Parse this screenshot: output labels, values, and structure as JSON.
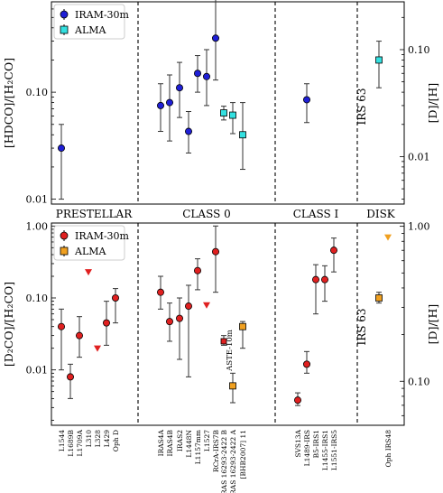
{
  "figure": {
    "section_labels": [
      "PRESTELLAR",
      "CLASS 0",
      "CLASS I",
      "DISK"
    ],
    "xticklabels": [
      "L1544",
      "L1689B",
      "L1709A",
      "L310",
      "L328",
      "L429",
      "Oph D",
      "IRAS4A",
      "IRAS4B",
      "IRAS2",
      "L1448N",
      "L1157mm",
      "L1527",
      "RCrA-IRS7B",
      "IRAS 16293-2422 B",
      "IRAS 16293-2422 A",
      "[BHB2007] 11",
      "SVS13A",
      "L1489-IRS",
      "B5-IRS1",
      "L1455-IRS1",
      "L1551-IRS5",
      "Oph IRS48"
    ],
    "colors": {
      "iram_top": "#1f1fd6",
      "alma_top": "#33e0e0",
      "iram_bottom": "#e02020",
      "alma_bottom": "#f0a020",
      "error": "#333333"
    }
  },
  "chart_data": [
    {
      "type": "scatter",
      "ylabel": "[HDCO]/[H₂CO]",
      "ylabel_right": "[D]/[H]",
      "yscale": "log",
      "ylim": [
        0.009,
        0.7
      ],
      "ylim_right": [
        0.0036,
        0.28
      ],
      "yticks": [
        0.01,
        0.1
      ],
      "yticklabels": [
        "0.01",
        "0.10"
      ],
      "yticks_right": [
        0.01,
        0.1
      ],
      "yticklabels_right": [
        "0.01",
        "0.10"
      ],
      "legend": {
        "position": "top-left",
        "entries": [
          "IRAM-30m",
          "ALMA"
        ]
      },
      "annotation": "IRS 63",
      "series": [
        {
          "name": "IRAM-30m",
          "points": [
            {
              "x": 0,
              "y": 0.03,
              "lo": 0.01,
              "hi": 0.05
            },
            {
              "x": 7,
              "y": 0.075,
              "lo": 0.043,
              "hi": 0.12
            },
            {
              "x": 8,
              "y": 0.08,
              "lo": 0.035,
              "hi": 0.145
            },
            {
              "x": 9,
              "y": 0.11,
              "lo": 0.058,
              "hi": 0.19
            },
            {
              "x": 10,
              "y": 0.043,
              "lo": 0.027,
              "hi": 0.066
            },
            {
              "x": 11,
              "y": 0.15,
              "lo": 0.1,
              "hi": 0.22
            },
            {
              "x": 12,
              "y": 0.14,
              "lo": 0.075,
              "hi": 0.25
            },
            {
              "x": 13,
              "y": 0.32,
              "lo": 0.13,
              "hi": 0.78
            },
            {
              "x": 18,
              "y": 0.085,
              "lo": 0.052,
              "hi": 0.12
            }
          ]
        },
        {
          "name": "ALMA",
          "points": [
            {
              "x": 14,
              "y": 0.064,
              "lo": 0.055,
              "hi": 0.074
            },
            {
              "x": 15,
              "y": 0.061,
              "lo": 0.041,
              "hi": 0.08
            },
            {
              "x": 16,
              "y": 0.04,
              "lo": 0.019,
              "hi": 0.08
            },
            {
              "x": 22,
              "y": 0.2,
              "lo": 0.11,
              "hi": 0.3
            }
          ]
        }
      ]
    },
    {
      "type": "scatter",
      "ylabel": "[D₂CO]/[H₂CO]",
      "ylabel_right": "[D]/[H]",
      "yscale": "log",
      "ylim": [
        0.0017,
        1.1
      ],
      "ylim_right": [
        0.052,
        1.05
      ],
      "yticks": [
        0.01,
        0.1,
        1.0
      ],
      "yticklabels": [
        "0.01",
        "0.10",
        "1.00"
      ],
      "yticks_right": [
        0.1,
        1.0
      ],
      "yticklabels_right": [
        "0.10",
        "1.00"
      ],
      "legend": {
        "position": "top-left",
        "entries": [
          "IRAM-30m",
          "ALMA"
        ]
      },
      "annotations": [
        "ASTE-10m",
        "IRS 63"
      ],
      "series": [
        {
          "name": "IRAM-30m",
          "points": [
            {
              "x": 0,
              "y": 0.04,
              "lo": 0.01,
              "hi": 0.07
            },
            {
              "x": 1,
              "y": 0.008,
              "lo": 0.004,
              "hi": 0.012
            },
            {
              "x": 2,
              "y": 0.03,
              "lo": 0.015,
              "hi": 0.055
            },
            {
              "x": 5,
              "y": 0.045,
              "lo": 0.022,
              "hi": 0.09
            },
            {
              "x": 6,
              "y": 0.1,
              "lo": 0.045,
              "hi": 0.135
            },
            {
              "x": 7,
              "y": 0.12,
              "lo": 0.07,
              "hi": 0.2
            },
            {
              "x": 8,
              "y": 0.047,
              "lo": 0.025,
              "hi": 0.085
            },
            {
              "x": 9,
              "y": 0.052,
              "lo": 0.014,
              "hi": 0.1
            },
            {
              "x": 10,
              "y": 0.077,
              "lo": 0.008,
              "hi": 0.15
            },
            {
              "x": 11,
              "y": 0.24,
              "lo": 0.13,
              "hi": 0.35
            },
            {
              "x": 13,
              "y": 0.44,
              "lo": 0.12,
              "hi": 1.0
            },
            {
              "x": 17,
              "y": 0.0038,
              "lo": 0.0032,
              "hi": 0.0048
            },
            {
              "x": 18,
              "y": 0.012,
              "lo": 0.009,
              "hi": 0.018
            },
            {
              "x": 19,
              "y": 0.18,
              "lo": 0.06,
              "hi": 0.29
            },
            {
              "x": 20,
              "y": 0.18,
              "lo": 0.09,
              "hi": 0.28
            },
            {
              "x": 21,
              "y": 0.46,
              "lo": 0.23,
              "hi": 0.68
            }
          ]
        },
        {
          "name": "upper limit",
          "marker": "triangle-down",
          "points": [
            {
              "x": 3,
              "y": 0.23
            },
            {
              "x": 4,
              "y": 0.02
            },
            {
              "x": 12,
              "y": 0.08
            }
          ]
        },
        {
          "name": "ASTE-10m",
          "points": [
            {
              "x": 14,
              "y": 0.025,
              "lo": 0.022,
              "hi": 0.03
            }
          ]
        },
        {
          "name": "ALMA",
          "points": [
            {
              "x": 15,
              "y": 0.006,
              "lo": 0.0035,
              "hi": 0.009
            },
            {
              "x": 16,
              "y": 0.04,
              "lo": 0.02,
              "hi": 0.047
            },
            {
              "x": 22,
              "y": 0.1,
              "lo": 0.085,
              "hi": 0.12
            }
          ]
        },
        {
          "name": "ALMA upper limit",
          "marker": "triangle-down",
          "points": [
            {
              "x": 23,
              "y": 0.7
            }
          ]
        }
      ]
    }
  ]
}
